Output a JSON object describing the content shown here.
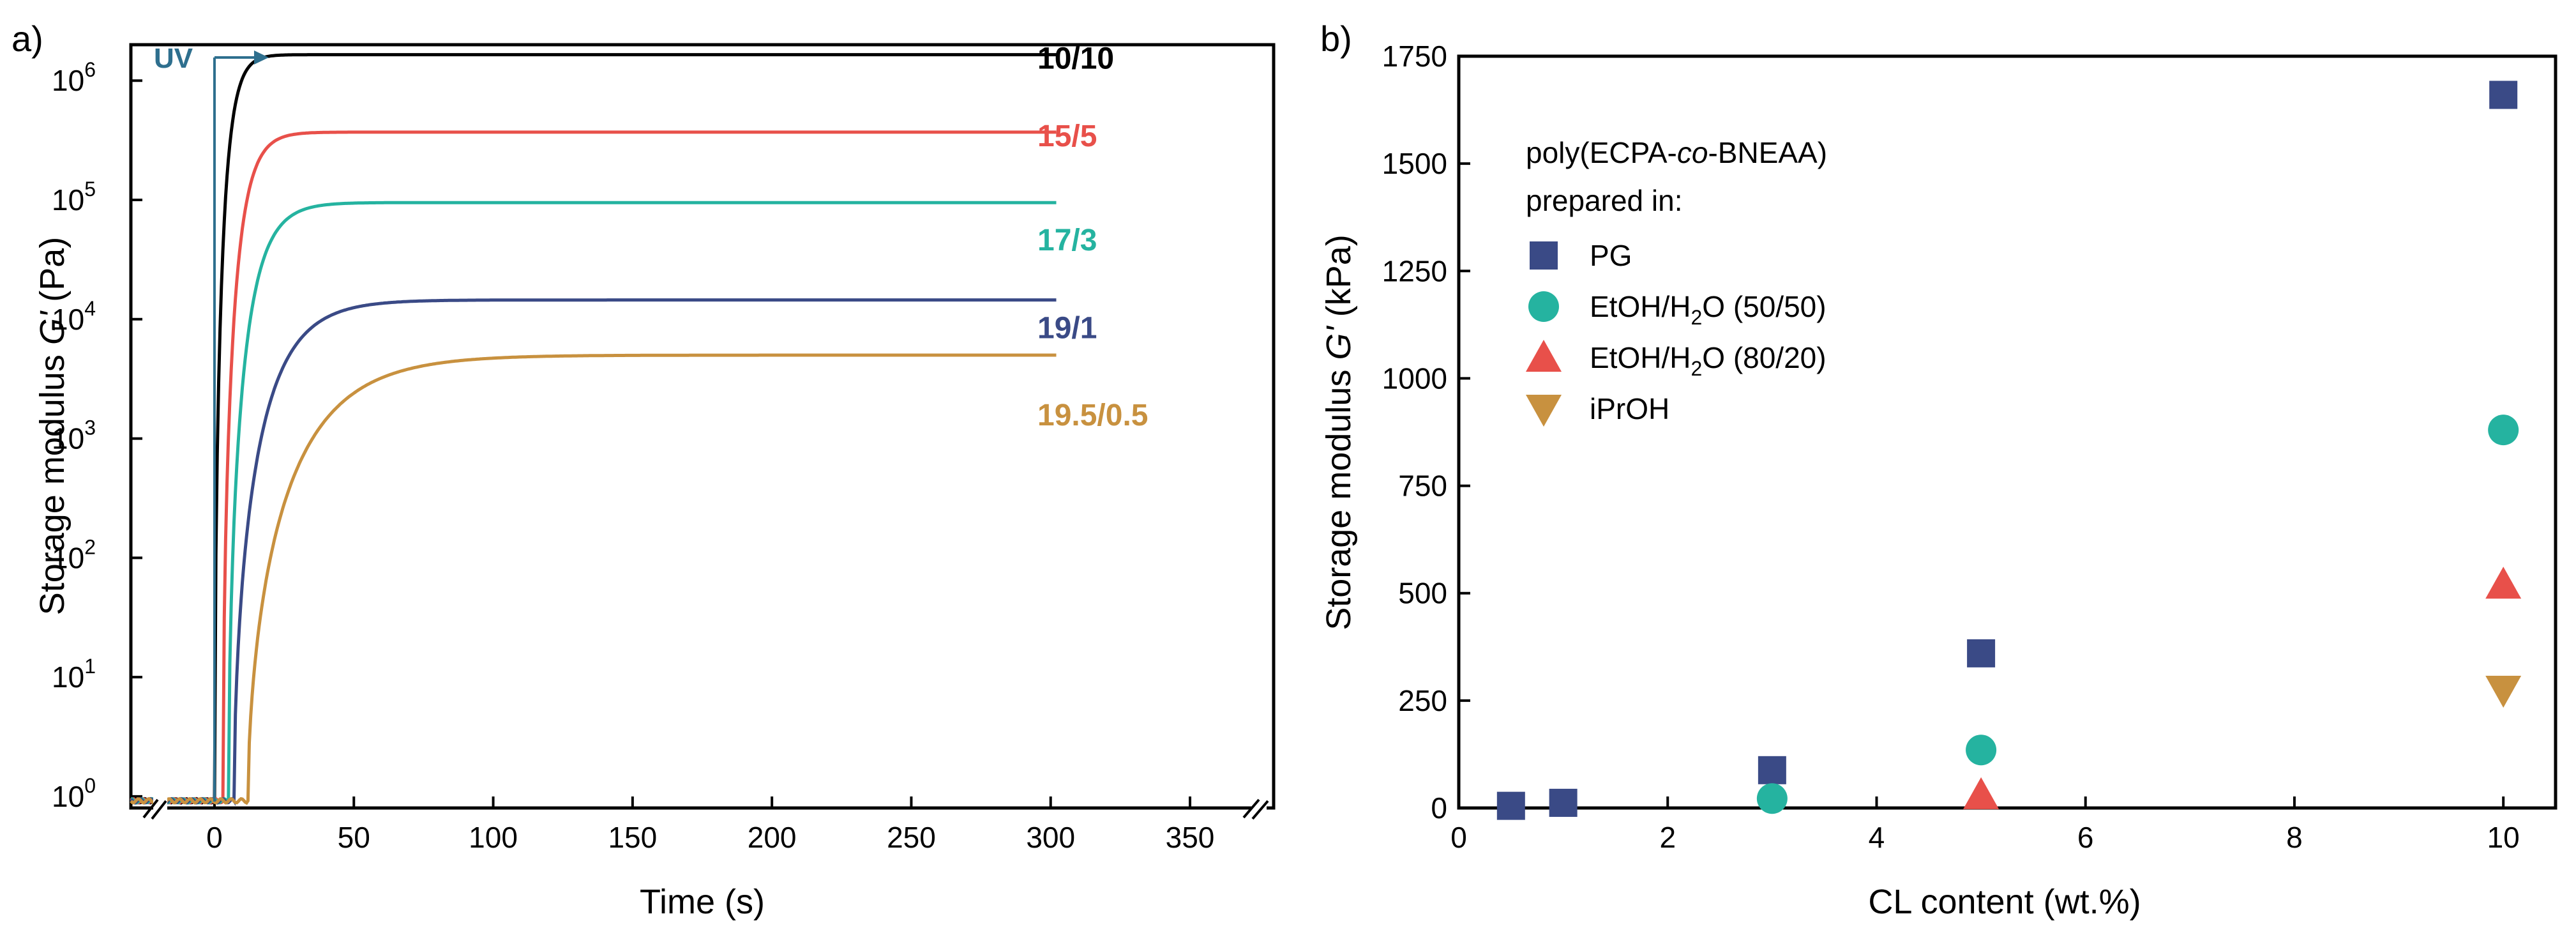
{
  "chart_data": [
    {
      "panel": "a)",
      "type": "line",
      "xlabel": "Time (s)",
      "ylabel_pre": "Storage modulus ",
      "ylabel_sym": "G'",
      "ylabel_post": " (Pa)",
      "xlim": [
        -30,
        380
      ],
      "ylim": [
        0.8,
        2000000
      ],
      "yscale": "log",
      "xticks": [
        0,
        50,
        100,
        150,
        200,
        250,
        300,
        350
      ],
      "xtick_labels": [
        "0",
        "50",
        "100",
        "150",
        "200",
        "250",
        "300",
        "350"
      ],
      "yticks": [
        1,
        10,
        100,
        1000,
        10000,
        100000,
        1000000
      ],
      "ytick_labels": [
        [
          "10",
          "0"
        ],
        [
          "10",
          "1"
        ],
        [
          "10",
          "2"
        ],
        [
          "10",
          "3"
        ],
        [
          "10",
          "4"
        ],
        [
          "10",
          "5"
        ],
        [
          "10",
          "6"
        ]
      ],
      "annotation": "UV",
      "annotation_x": 0,
      "series": [
        {
          "name": "10/10",
          "color": "#000000",
          "onset": 0,
          "tau": 3.5,
          "plateau": 1650000
        },
        {
          "name": "15/5",
          "color": "#e8504a",
          "onset": 3,
          "tau": 5,
          "plateau": 370000
        },
        {
          "name": "17/3",
          "color": "#25b3a0",
          "onset": 5,
          "tau": 7,
          "plateau": 95000
        },
        {
          "name": "19/1",
          "color": "#3a4a86",
          "onset": 7,
          "tau": 12,
          "plateau": 14500
        },
        {
          "name": "19.5/0.5",
          "color": "#c8913f",
          "onset": 12,
          "tau": 20,
          "plateau": 5000
        }
      ]
    },
    {
      "panel": "b)",
      "type": "scatter",
      "xlabel": "CL content (wt.%)",
      "ylabel_pre": "Storage modulus ",
      "ylabel_sym": "G'",
      "ylabel_post": " (kPa)",
      "xlim": [
        0,
        10.5
      ],
      "ylim": [
        0,
        1750
      ],
      "xticks": [
        0,
        2,
        4,
        6,
        8,
        10
      ],
      "xtick_labels": [
        "0",
        "2",
        "4",
        "6",
        "8",
        "10"
      ],
      "yticks": [
        0,
        250,
        500,
        750,
        1000,
        1250,
        1500,
        1750
      ],
      "ytick_labels": [
        "0",
        "250",
        "500",
        "750",
        "1000",
        "1250",
        "1500",
        "1750"
      ],
      "legend_title_1": "poly(ECPA-",
      "legend_title_2": "co",
      "legend_title_3": "-BNEAA)",
      "legend_title_line2": "prepared in:",
      "series": [
        {
          "name": "PG",
          "marker": "square",
          "color": "#3a4a86",
          "x": [
            0.5,
            1,
            3,
            5,
            10
          ],
          "y": [
            5,
            12,
            88,
            360,
            1660
          ]
        },
        {
          "name": "EtOH/H2O (50/50)",
          "label_a": "EtOH/H",
          "label_sub": "2",
          "label_b": "O (50/50)",
          "marker": "circle",
          "color": "#25b3a0",
          "x": [
            3,
            5,
            10
          ],
          "y": [
            22,
            135,
            880
          ]
        },
        {
          "name": "EtOH/H2O (80/20)",
          "label_a": "EtOH/H",
          "label_sub": "2",
          "label_b": "O (80/20)",
          "marker": "triangle-up",
          "color": "#e8504a",
          "x": [
            5,
            10
          ],
          "y": [
            30,
            520
          ]
        },
        {
          "name": "iPrOH",
          "marker": "triangle-down",
          "color": "#c8913f",
          "x": [
            10
          ],
          "y": [
            275
          ]
        }
      ]
    }
  ]
}
